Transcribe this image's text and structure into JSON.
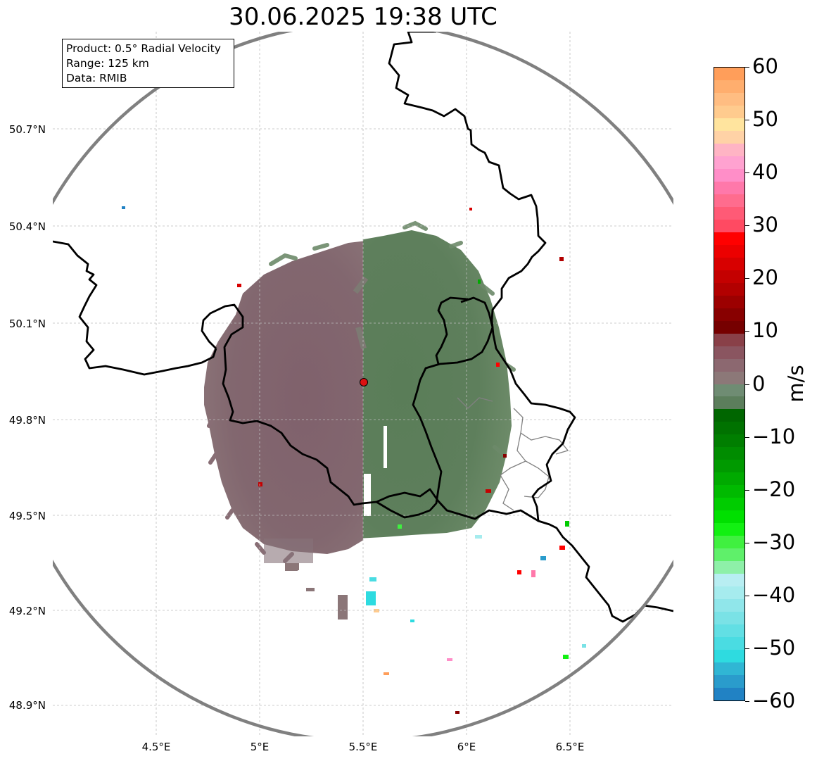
{
  "title": "30.06.2025 19:38 UTC",
  "info_box": {
    "product": "Product: 0.5° Radial Velocity",
    "range": "Range: 125 km",
    "source": "Data: RMIB"
  },
  "map": {
    "lon_range": [
      4.0,
      7.0
    ],
    "lat_range": [
      48.8,
      50.99
    ],
    "radar_site": {
      "lon": 5.505,
      "lat": 49.914
    },
    "range_ring_color": "#808080",
    "border_color": "#000000",
    "subregion_border_color": "#808080",
    "grid": true,
    "lat_ticks": [
      "50.7°N",
      "50.4°N",
      "50.1°N",
      "49.8°N",
      "49.5°N",
      "49.2°N",
      "48.9°N"
    ],
    "lon_ticks": [
      "4.5°E",
      "5°E",
      "5.5°E",
      "6°E",
      "6.5°E"
    ],
    "lat_tick_values": [
      50.7,
      50.4,
      50.1,
      49.8,
      49.5,
      49.2,
      48.9
    ],
    "lon_tick_values": [
      4.5,
      5.0,
      5.5,
      6.0,
      6.5
    ]
  },
  "colorbar": {
    "unit": "m/s",
    "min": -60,
    "max": 60,
    "tick_labels": [
      "60",
      "50",
      "40",
      "30",
      "20",
      "10",
      "0",
      "−10",
      "−20",
      "−30",
      "−40",
      "−50",
      "−60"
    ],
    "tick_values": [
      60,
      50,
      40,
      30,
      20,
      10,
      0,
      -10,
      -20,
      -30,
      -40,
      -50,
      -60
    ],
    "colors": [
      "#ff9e5a",
      "#ffae6e",
      "#ffbd82",
      "#ffcb8e",
      "#ffe49e",
      "#ffd2a6",
      "#ffb4c4",
      "#ffa2d0",
      "#ff8ec8",
      "#ff78aa",
      "#ff6c8e",
      "#ff5a76",
      "#ff4a62",
      "#ff0000",
      "#ec0000",
      "#d80000",
      "#c40000",
      "#b20000",
      "#9c0000",
      "#880000",
      "#760000",
      "#894048",
      "#8a5560",
      "#8c6870",
      "#8c7878",
      "#6f8c73",
      "#5c7e5c",
      "#006600",
      "#007200",
      "#007e00",
      "#008c00",
      "#009a00",
      "#00aa00",
      "#00ba00",
      "#00cc00",
      "#00e000",
      "#12f012",
      "#40f040",
      "#5ff06a",
      "#8ef0a8",
      "#b8eef2",
      "#a6ecee",
      "#90e6ea",
      "#7ae2e6",
      "#62dfe4",
      "#4adce2",
      "#2edbe0",
      "#30b6d4",
      "#2a9ccc",
      "#2182c4"
    ]
  }
}
